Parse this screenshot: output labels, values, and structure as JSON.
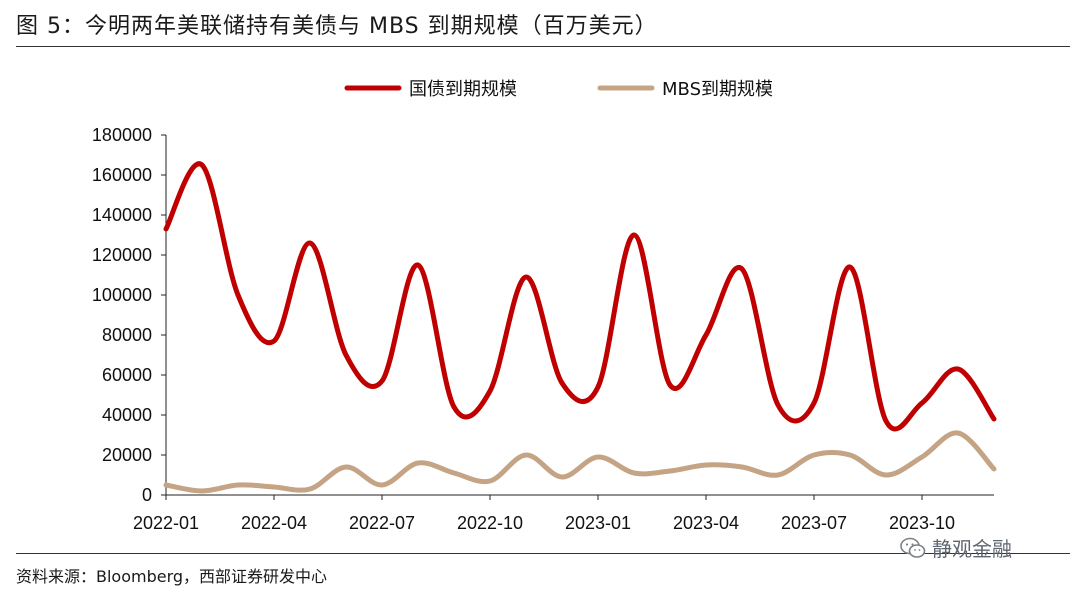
{
  "figure": {
    "title": "图 5：今明两年美联储持有美债与 MBS 到期规模（百万美元）",
    "source": "资料来源：Bloomberg，西部证券研发中心",
    "watermark": "静观金融"
  },
  "chart_data": {
    "type": "line",
    "title": "",
    "xlabel": "",
    "ylabel": "",
    "ylim": [
      0,
      180000
    ],
    "yticks": [
      "0",
      "20000",
      "40000",
      "60000",
      "80000",
      "100000",
      "120000",
      "140000",
      "160000",
      "180000"
    ],
    "xticks": [
      "2022-01",
      "2022-04",
      "2022-07",
      "2022-10",
      "2023-01",
      "2023-04",
      "2023-07",
      "2023-10"
    ],
    "x": [
      "2022-01",
      "2022-02",
      "2022-03",
      "2022-04",
      "2022-05",
      "2022-06",
      "2022-07",
      "2022-08",
      "2022-09",
      "2022-10",
      "2022-11",
      "2022-12",
      "2023-01",
      "2023-02",
      "2023-03",
      "2023-04",
      "2023-05",
      "2023-06",
      "2023-07",
      "2023-08",
      "2023-09",
      "2023-10",
      "2023-11",
      "2023-12"
    ],
    "legend_position": "top-center",
    "grid": false,
    "series": [
      {
        "name": "国债到期规模",
        "color": "#c00000",
        "values": [
          133000,
          165000,
          100000,
          77000,
          126000,
          70000,
          57000,
          115000,
          44000,
          52000,
          109000,
          56000,
          54000,
          130000,
          55000,
          80000,
          113000,
          45000,
          46000,
          114000,
          37000,
          46000,
          63000,
          38000
        ]
      },
      {
        "name": "MBS到期规模",
        "color": "#c4a484",
        "values": [
          5000,
          2000,
          5000,
          4000,
          3000,
          14000,
          5000,
          16000,
          11000,
          7000,
          20000,
          9000,
          19000,
          11000,
          12000,
          15000,
          14000,
          10000,
          20000,
          20000,
          10000,
          19000,
          31000,
          13000
        ]
      }
    ]
  }
}
